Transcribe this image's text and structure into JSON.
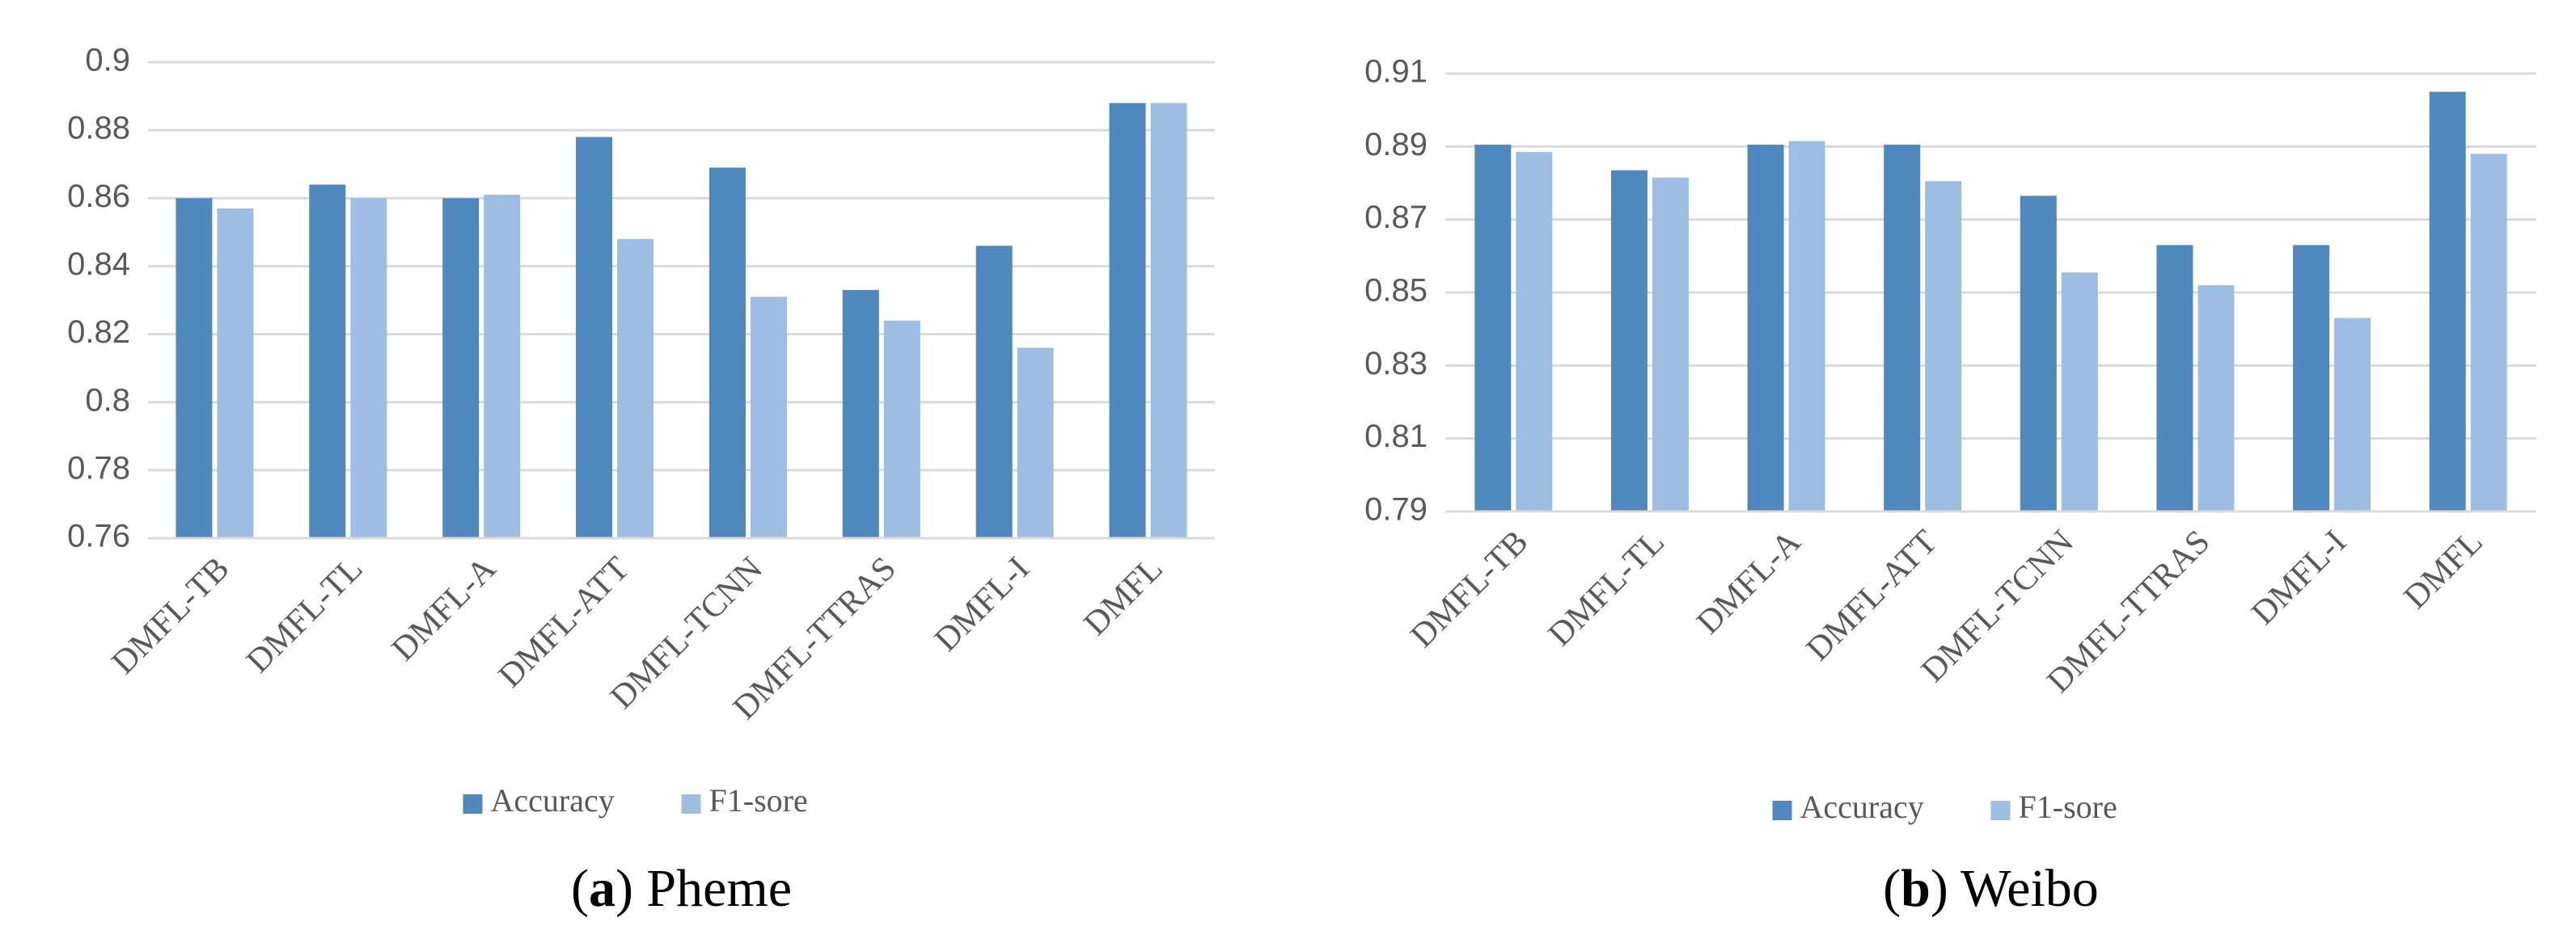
{
  "chart_data": [
    {
      "type": "bar",
      "caption": [
        "(",
        "a",
        ") Pheme"
      ],
      "categories": [
        "DMFL-TB",
        "DMFL-TL",
        "DMFL-A",
        "DMFL-ATT",
        "DMFL-TCNN",
        "DMFL-TTRAS",
        "DMFL-I",
        "DMFL"
      ],
      "series": [
        {
          "name": "Accuracy",
          "color": "#4f88bd",
          "values": [
            0.86,
            0.864,
            0.86,
            0.878,
            0.869,
            0.833,
            0.846,
            0.888
          ]
        },
        {
          "name": "F1-sore",
          "color": "#9dbde3",
          "values": [
            0.857,
            0.86,
            0.861,
            0.848,
            0.831,
            0.824,
            0.816,
            0.888
          ]
        }
      ],
      "ylim": [
        0.76,
        0.9
      ],
      "yticks": [
        0.76,
        0.78,
        0.8,
        0.82,
        0.84,
        0.86,
        0.88,
        0.9
      ],
      "grid": true,
      "legend": "bottom"
    },
    {
      "type": "bar",
      "caption": [
        "(",
        "b",
        ") Weibo"
      ],
      "categories": [
        "DMFL-TB",
        "DMFL-TL",
        "DMFL-A",
        "DMFL-ATT",
        "DMFL-TCNN",
        "DMFL-TTRAS",
        "DMFL-I",
        "DMFL"
      ],
      "series": [
        {
          "name": "Accuracy",
          "color": "#4f88bd",
          "values": [
            0.8905,
            0.8835,
            0.8905,
            0.8905,
            0.8765,
            0.863,
            0.863,
            0.905
          ]
        },
        {
          "name": "F1-sore",
          "color": "#9dbde3",
          "values": [
            0.8885,
            0.8815,
            0.8915,
            0.8805,
            0.8555,
            0.852,
            0.843,
            0.888
          ]
        }
      ],
      "ylim": [
        0.79,
        0.91
      ],
      "yticks": [
        0.79,
        0.81,
        0.83,
        0.85,
        0.87,
        0.89,
        0.91
      ],
      "grid": true,
      "legend": "bottom"
    }
  ]
}
